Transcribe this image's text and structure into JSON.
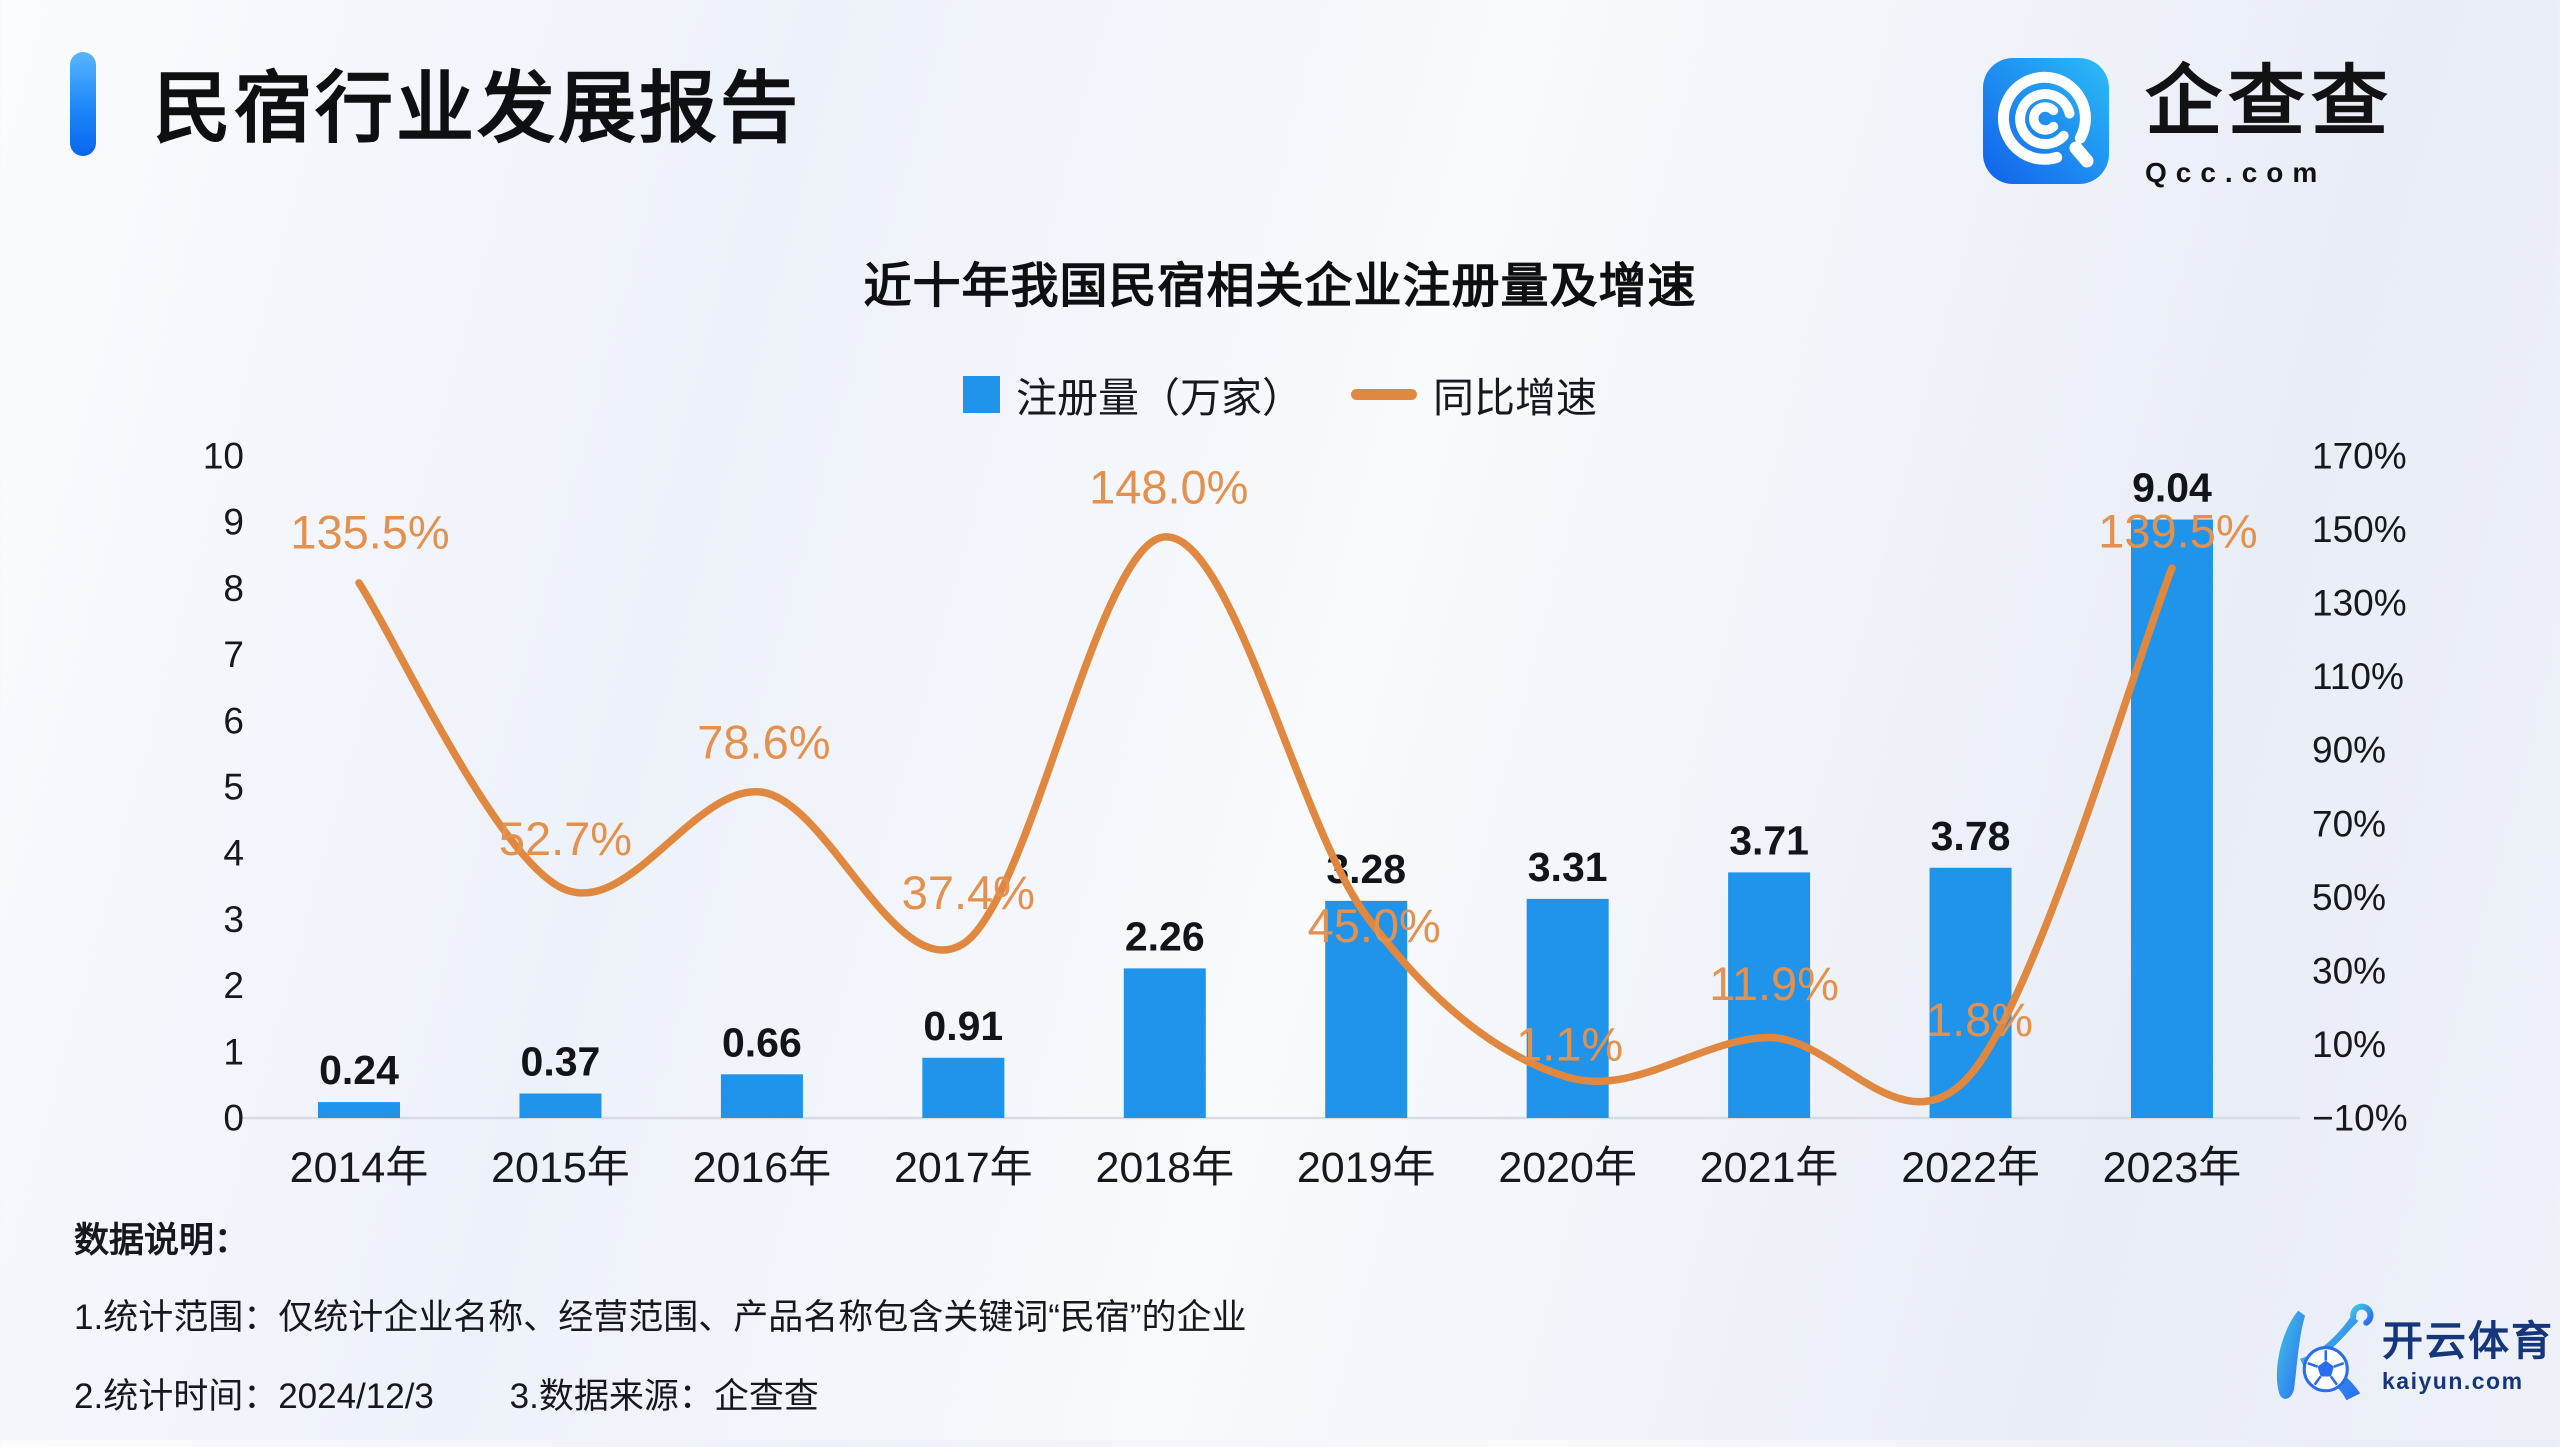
{
  "page": {
    "report_title": "民宿行业发展报告",
    "brand": {
      "name": "企查查",
      "domain": "Qcc.com"
    },
    "watermark": {
      "name": "开云体育",
      "domain": "kaiyun.com"
    }
  },
  "notes": {
    "heading": "数据说明：",
    "scope": "1.统计范围：仅统计企业名称、经营范围、产品名称包含关键词“民宿”的企业",
    "time": "2.统计时间：2024/12/3",
    "source": "3.数据来源：企查查"
  },
  "chart_data": {
    "type": "bar+line",
    "title": "近十年我国民宿相关企业注册量及增速",
    "categories": [
      "2014年",
      "2015年",
      "2016年",
      "2017年",
      "2018年",
      "2019年",
      "2020年",
      "2021年",
      "2022年",
      "2023年"
    ],
    "series": [
      {
        "name": "注册量（万家）",
        "type": "bar",
        "color": "#2093ea",
        "values": [
          0.24,
          0.37,
          0.66,
          0.91,
          2.26,
          3.28,
          3.31,
          3.71,
          3.78,
          9.04
        ],
        "labels": [
          "0.24",
          "0.37",
          "0.66",
          "0.91",
          "2.26",
          "3.28",
          "3.31",
          "3.71",
          "3.78",
          "9.04"
        ]
      },
      {
        "name": "同比增速",
        "type": "line",
        "color": "#e0883f",
        "label_color": "#e2914f",
        "values": [
          135.5,
          52.7,
          78.6,
          37.4,
          148.0,
          45.0,
          1.1,
          11.9,
          1.8,
          139.5
        ],
        "labels": [
          "135.5%",
          "52.7%",
          "78.6%",
          "37.4%",
          "148.0%",
          "45.0%",
          "1.1%",
          "11.9%",
          "1.8%",
          "139.5%"
        ]
      }
    ],
    "left_axis": {
      "min": 0,
      "max": 10,
      "ticks": [
        "10",
        "9",
        "8",
        "7",
        "6",
        "5",
        "4",
        "3",
        "2",
        "1",
        "0"
      ]
    },
    "right_axis": {
      "min": -10,
      "max": 170,
      "ticks": [
        "170%",
        "150%",
        "130%",
        "110%",
        "90%",
        "70%",
        "50%",
        "30%",
        "10%",
        "−10%"
      ]
    },
    "legend_position": "top-center",
    "grid": false,
    "baseline_color": "#d8dbe3",
    "text_color": "#15181d"
  }
}
